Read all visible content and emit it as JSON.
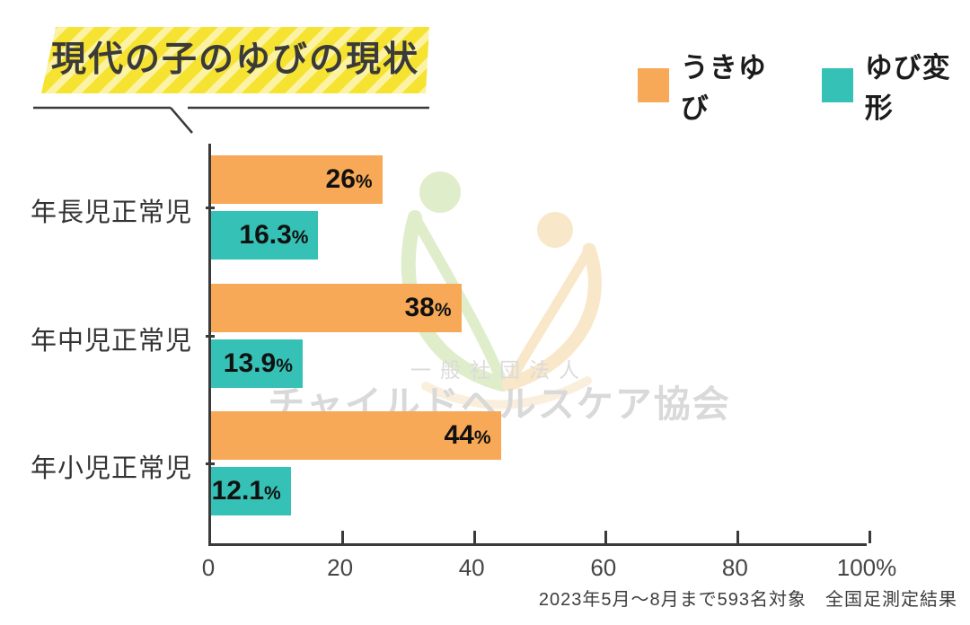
{
  "title": {
    "text": "現代の子のゆびの現状"
  },
  "legend": [
    {
      "label": "うきゆび",
      "color": "#F7A957"
    },
    {
      "label": "ゆび変形",
      "color": "#35C1B5"
    }
  ],
  "chart_data": {
    "type": "bar",
    "orientation": "horizontal",
    "title": "現代の子のゆびの現状",
    "categories": [
      "年長児正常児",
      "年中児正常児",
      "年小児正常児"
    ],
    "series": [
      {
        "name": "うきゆび",
        "color": "#F7A957",
        "values": [
          26,
          38,
          44
        ],
        "value_labels": [
          "26%",
          "38%",
          "44%"
        ]
      },
      {
        "name": "ゆび変形",
        "color": "#35C1B5",
        "values": [
          16.3,
          13.9,
          12.1
        ],
        "value_labels": [
          "16.3%",
          "13.9%",
          "12.1%"
        ]
      }
    ],
    "x_axis": {
      "min": 0,
      "max": 100,
      "tick_labels": [
        "0",
        "20",
        "40",
        "60",
        "80",
        "100%"
      ]
    },
    "grid": false,
    "legend_position": "top-right",
    "value_labels_position": "inside-end"
  },
  "watermark": {
    "line1": "一般社団法人",
    "line2": "チャイルドヘルスケア協会"
  },
  "footer": {
    "text": "2023年5月～8月まで593名対象　全国足測定結果"
  },
  "colors": {
    "bar_ukiyubi": "#F7A957",
    "bar_yubihenkei": "#35C1B5",
    "title_stripe_bright": "#F6E331",
    "title_stripe_pale": "#FBF3A3",
    "axis": "#3A3A3A",
    "watermark_text": "#D9D9D9",
    "watermark_green": "#DFEDCB",
    "watermark_peach": "#F9E7C9"
  }
}
